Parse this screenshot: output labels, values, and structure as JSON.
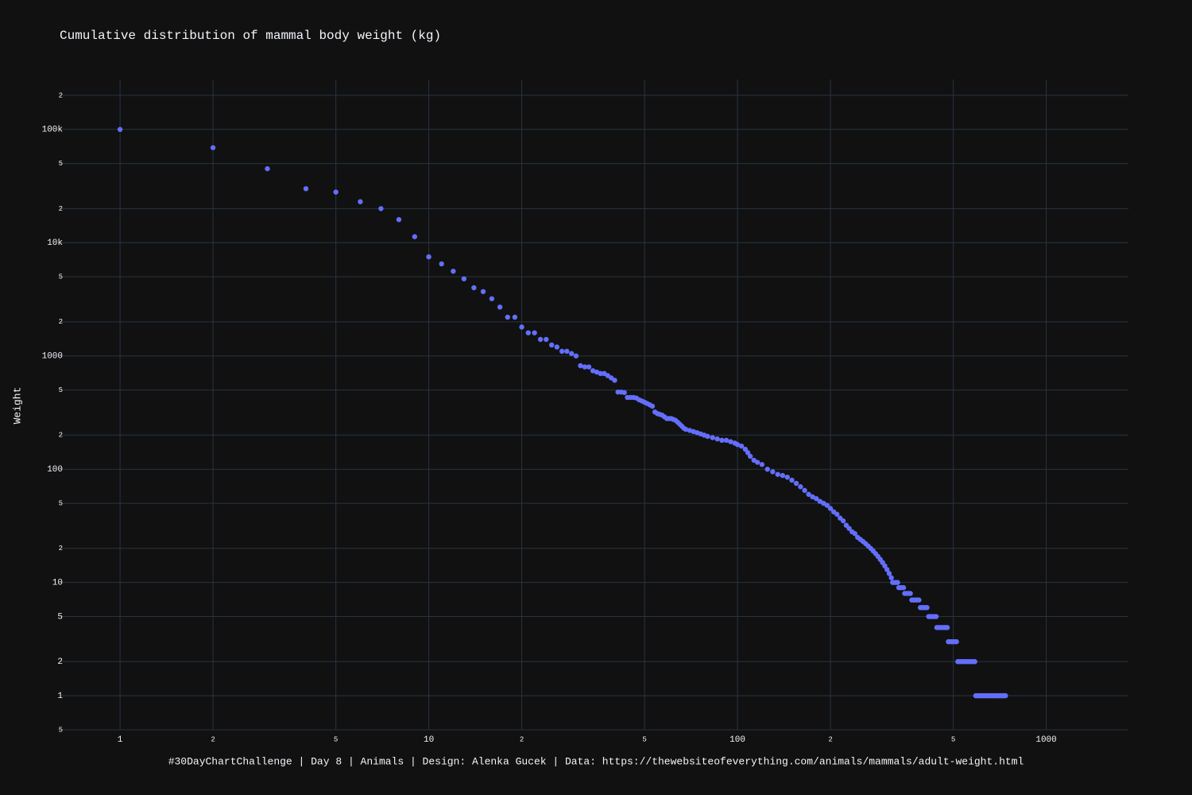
{
  "chart_data": {
    "type": "scatter",
    "title": "Cumulative distribution of mammal body weight (kg)",
    "y_label": "Weight",
    "annotation": "#30DayChartChallenge | Day 8 | Animals | Design: Alenka Gucek | Data: https://thewebsiteofeverything.com/animals/mammals/adult-weight.html",
    "log_x": true,
    "log_y": true,
    "grid": true,
    "xlim": [
      0.637,
      1846
    ],
    "ylim": [
      0.5,
      276000
    ],
    "xticks": [
      1,
      {
        "value": 2,
        "label": "2"
      },
      {
        "value": 5,
        "label": "5"
      },
      10,
      {
        "value": 20,
        "label": "2"
      },
      {
        "value": 50,
        "label": "5"
      },
      100,
      {
        "value": 200,
        "label": "2"
      },
      {
        "value": 500,
        "label": "5"
      },
      1000
    ],
    "yticks": [
      {
        "value": 0.5,
        "label": "5"
      },
      1,
      2,
      5,
      10,
      {
        "value": 20,
        "label": "2"
      },
      {
        "value": 50,
        "label": "5"
      },
      100,
      {
        "value": 200,
        "label": "2"
      },
      {
        "value": 500,
        "label": "5"
      },
      1000,
      {
        "value": 2000,
        "label": "2"
      },
      {
        "value": 5000,
        "label": "5"
      },
      {
        "value": 10000,
        "label": "10k"
      },
      {
        "value": 20000,
        "label": "2"
      },
      {
        "value": 50000,
        "label": "5"
      },
      {
        "value": 100000,
        "label": "100k"
      },
      {
        "value": 200000,
        "label": "2"
      }
    ],
    "series": [
      {
        "color": "#636efa",
        "x": [
          1,
          2,
          3,
          4,
          5,
          6,
          7,
          8,
          9,
          10,
          11,
          12,
          13,
          14,
          15,
          16,
          17,
          18,
          19,
          20,
          21,
          22,
          23,
          24,
          25,
          26,
          27,
          28,
          29,
          30,
          31,
          32,
          33,
          34,
          35,
          36,
          37,
          38,
          39,
          40,
          41,
          42,
          43,
          44,
          45,
          46,
          47,
          48,
          49,
          50,
          51,
          52,
          53,
          54,
          55,
          56,
          57,
          58,
          59,
          60,
          61,
          62,
          63,
          64,
          65,
          66,
          67,
          68,
          70,
          72,
          74,
          76,
          78,
          80,
          83,
          86,
          89,
          92,
          95,
          98,
          100,
          103,
          106,
          108,
          110,
          113,
          116,
          120,
          125,
          130,
          135,
          140,
          145,
          150,
          155,
          160,
          165,
          170,
          175,
          180,
          185,
          190,
          195,
          200,
          205,
          210,
          215,
          220,
          225,
          230,
          235,
          240,
          245,
          250,
          255,
          260,
          265,
          270,
          275,
          280,
          285,
          290,
          295,
          300,
          305,
          310,
          315,
          318,
          322,
          326,
          330,
          333,
          337,
          341,
          345,
          348,
          353,
          358,
          363,
          367,
          372,
          377,
          382,
          387,
          391,
          396,
          401,
          406,
          411,
          416,
          421,
          426,
          431,
          436,
          440,
          442,
          448,
          454,
          460,
          466,
          472,
          478,
          482,
          488,
          494,
          500,
          506,
          512,
          517,
          524,
          531,
          538,
          545,
          552,
          559,
          566,
          573,
          580,
          587,
          591,
          598,
          605,
          612,
          619,
          626,
          633,
          640,
          647,
          654,
          661,
          668,
          675,
          682,
          689,
          696,
          703,
          710,
          717,
          724,
          731,
          738
        ],
        "values": [
          100000,
          69000,
          45000,
          30000,
          28000,
          23000,
          20000,
          16000,
          11300,
          7500,
          6500,
          5600,
          4800,
          4000,
          3700,
          3200,
          2700,
          2200,
          2200,
          1800,
          1600,
          1600,
          1400,
          1400,
          1250,
          1200,
          1100,
          1100,
          1050,
          1000,
          820,
          800,
          800,
          740,
          720,
          700,
          700,
          670,
          640,
          610,
          480,
          480,
          475,
          430,
          430,
          430,
          425,
          410,
          400,
          390,
          380,
          370,
          360,
          320,
          310,
          305,
          300,
          290,
          280,
          280,
          280,
          275,
          270,
          260,
          250,
          240,
          230,
          225,
          220,
          215,
          210,
          205,
          200,
          195,
          190,
          185,
          180,
          180,
          175,
          170,
          165,
          160,
          150,
          140,
          130,
          120,
          115,
          110,
          100,
          95,
          90,
          88,
          85,
          80,
          75,
          70,
          65,
          60,
          57,
          55,
          52,
          50,
          48,
          45,
          42,
          40,
          37,
          35,
          32,
          30,
          28,
          27,
          25,
          24,
          23,
          22,
          21,
          20,
          19,
          18,
          17,
          16,
          15,
          14,
          13,
          12,
          11,
          10,
          10,
          10,
          10,
          9,
          9,
          9,
          9,
          8,
          8,
          8,
          8,
          7,
          7,
          7,
          7,
          7,
          6,
          6,
          6,
          6,
          6,
          5,
          5,
          5,
          5,
          5,
          5,
          4,
          4,
          4,
          4,
          4,
          4,
          4,
          3,
          3,
          3,
          3,
          3,
          3,
          2,
          2,
          2,
          2,
          2,
          2,
          2,
          2,
          2,
          2,
          2,
          1,
          1,
          1,
          1,
          1,
          1,
          1,
          1,
          1,
          1,
          1,
          1,
          1,
          1,
          1,
          1,
          1,
          1,
          1,
          1,
          1,
          1
        ]
      }
    ]
  }
}
